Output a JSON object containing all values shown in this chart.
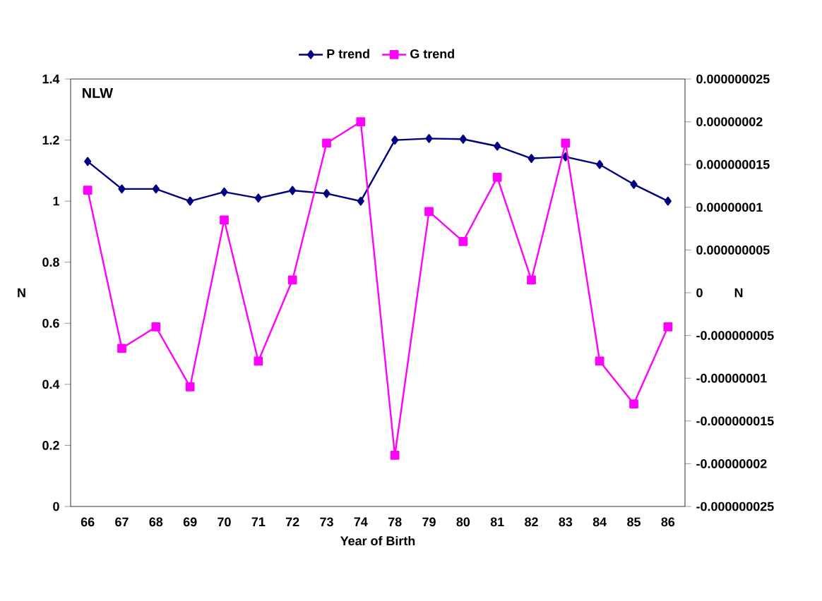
{
  "chart_data": {
    "type": "line",
    "xlabel": "Year of Birth",
    "ylabel": "N",
    "y2label": "N",
    "annotations": [
      "NLW"
    ],
    "categories": [
      "66",
      "67",
      "68",
      "69",
      "70",
      "71",
      "72",
      "73",
      "74",
      "78",
      "79",
      "80",
      "81",
      "82",
      "83",
      "84",
      "85",
      "86"
    ],
    "series": [
      {
        "name": "P trend",
        "color": "#000080",
        "marker": "diamond",
        "values": [
          1.13,
          1.04,
          1.04,
          1.0,
          1.03,
          1.01,
          1.035,
          1.025,
          1.0,
          1.2,
          1.205,
          1.203,
          1.18,
          1.14,
          1.145,
          1.12,
          1.055,
          1.0
        ]
      },
      {
        "name": "G trend",
        "color": "#ff00ff",
        "marker": "square",
        "axis": "y2",
        "values": [
          1.2e-08,
          -6.5e-09,
          -4e-09,
          -1.1e-08,
          8.5e-09,
          -8e-09,
          1.5e-09,
          1.75e-08,
          2e-08,
          -1.9e-08,
          9.5e-09,
          6e-09,
          1.35e-08,
          1.5e-09,
          1.75e-08,
          -8e-09,
          -1.3e-08,
          -4e-09
        ]
      }
    ],
    "ylim": [
      0,
      1.4
    ],
    "yticks": [
      0,
      0.2,
      0.4,
      0.6,
      0.8,
      1,
      1.2,
      1.4
    ],
    "y2lim": [
      -2.5e-08,
      2.5e-08
    ],
    "y2ticks": [
      {
        "value": -2.5e-08,
        "label": "-0.000000025"
      },
      {
        "value": -2e-08,
        "label": "-0.00000002"
      },
      {
        "value": -1.5e-08,
        "label": "-0.000000015"
      },
      {
        "value": -1e-08,
        "label": "-0.00000001"
      },
      {
        "value": -5e-09,
        "label": "-0.000000005"
      },
      0,
      {
        "value": 5e-09,
        "label": "0.000000005"
      },
      {
        "value": 1e-08,
        "label": "0.00000001"
      },
      {
        "value": 1.5e-08,
        "label": "0.000000015"
      },
      {
        "value": 2e-08,
        "label": "0.00000002"
      },
      {
        "value": 2.5e-08,
        "label": "0.000000025"
      }
    ],
    "grid": false,
    "legend": "top",
    "line_style": "solid"
  }
}
